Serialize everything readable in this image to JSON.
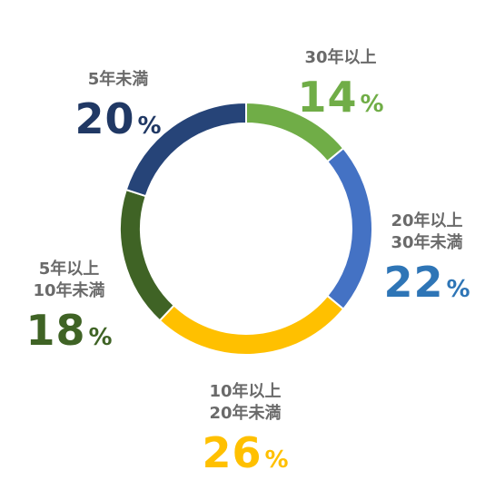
{
  "chart_data": {
    "type": "pie",
    "variant": "donut",
    "categories": [
      "30年以上",
      "20年以上\n30年未満",
      "10年以上\n20年未満",
      "5年以上\n10年未満",
      "5年未満"
    ],
    "values": [
      14,
      22,
      26,
      18,
      20
    ],
    "unit": "%",
    "colors": [
      "#70ad47",
      "#4472c4",
      "#ffc000",
      "#3f6325",
      "#264478"
    ],
    "label_colors": [
      "#70ad47",
      "#2e75b6",
      "#ffc000",
      "#3f6325",
      "#203864"
    ],
    "start_angle": "top",
    "direction": "clockwise",
    "title": "",
    "legend": "none"
  }
}
